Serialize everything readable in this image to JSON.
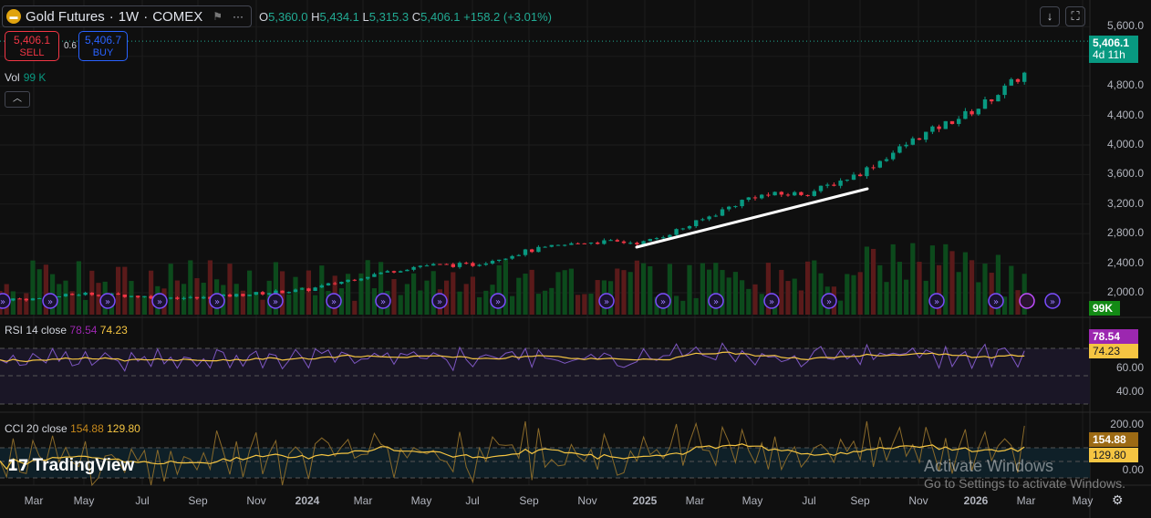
{
  "header": {
    "symbol": "Gold Futures",
    "interval": "1W",
    "exchange": "COMEX",
    "open_label": "O",
    "open": "5,360.0",
    "high_label": "H",
    "high": "5,434.1",
    "low_label": "L",
    "low": "5,315.3",
    "close_label": "C",
    "close": "5,406.1",
    "change": "+158.2 (+3.01%)"
  },
  "trade": {
    "sell_price": "5,406.1",
    "sell_label": "SELL",
    "spread": "0.6",
    "buy_price": "5,406.7",
    "buy_label": "BUY"
  },
  "volume": {
    "label": "Vol",
    "value": "99 K",
    "tag": "99K"
  },
  "price_axis": {
    "ticks": [
      "5,600.0",
      "4,800.0",
      "4,400.0",
      "4,000.0",
      "3,600.0",
      "3,200.0",
      "2,800.0",
      "2,400.0",
      "2,000.0"
    ],
    "last_price": "5,406.1",
    "countdown": "4d 11h"
  },
  "rsi": {
    "label": "RSI",
    "params": "14 close",
    "value": "78.54",
    "ma": "74.23",
    "ticks": [
      "60.00",
      "40.00"
    ]
  },
  "cci": {
    "label": "CCI",
    "params": "20 close",
    "value": "154.88",
    "ma": "129.80",
    "ticks": [
      "200.00",
      "0.00"
    ]
  },
  "time_axis": [
    "Mar",
    "May",
    "Jul",
    "Sep",
    "Nov",
    "2024",
    "Mar",
    "May",
    "Jul",
    "Sep",
    "Nov",
    "2025",
    "Mar",
    "May",
    "Jul",
    "Sep",
    "Nov",
    "2026",
    "Mar",
    "May"
  ],
  "brand": "TradingView",
  "watermark": {
    "line1": "Activate Windows",
    "line2": "Go to Settings to activate Windows."
  },
  "colors": {
    "up": "#089981",
    "down": "#f23645",
    "rsi": "#7e57c2",
    "ma": "#f5c542",
    "accent": "#22ab94"
  },
  "chart_data": {
    "type": "candlestick",
    "interval": "1W",
    "approx_monthly_close": {
      "x": [
        "2023-03",
        "2023-05",
        "2023-07",
        "2023-09",
        "2023-11",
        "2024-01",
        "2024-03",
        "2024-05",
        "2024-07",
        "2024-09",
        "2024-11",
        "2025-01",
        "2025-03",
        "2025-05",
        "2025-07",
        "2025-09",
        "2025-11",
        "2026-01",
        "2026-02",
        "2026-03"
      ],
      "y": [
        1915,
        1990,
        1950,
        1925,
        1990,
        2040,
        2220,
        2370,
        2380,
        2570,
        2690,
        2680,
        2940,
        3310,
        3350,
        3620,
        4110,
        4480,
        4980,
        5406
      ]
    },
    "trendline": {
      "from": [
        "2024-12",
        2650
      ],
      "to": [
        "2025-09",
        3400
      ]
    }
  }
}
